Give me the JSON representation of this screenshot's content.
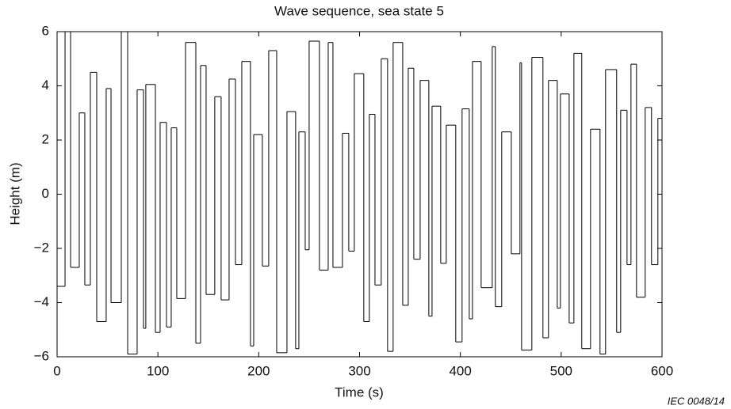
{
  "chart_data": {
    "type": "step",
    "title": "Wave sequence, sea state 5",
    "x_label": "Time   (s)",
    "y_label": "Height   (m)",
    "note": "IEC  0048/14",
    "color": "#000000",
    "xlim": [
      0,
      600
    ],
    "ylim": [
      -6,
      6
    ],
    "xticks": [
      0,
      100,
      200,
      300,
      400,
      500,
      600
    ],
    "yticks": [
      {
        "value": -6,
        "label": "−6"
      },
      {
        "value": -4,
        "label": "−4"
      },
      {
        "value": -2,
        "label": "−2"
      },
      0,
      2,
      4,
      6
    ],
    "x": [
      0,
      7.9,
      13.4,
      22,
      27.5,
      33,
      39.3,
      48.7,
      53.5,
      63.7,
      70,
      79.4,
      85.7,
      88,
      97.5,
      102.2,
      108.5,
      113.2,
      118.7,
      127.4,
      137.6,
      142.3,
      147.8,
      156.4,
      162.7,
      170.6,
      176.9,
      183.2,
      191.8,
      195,
      203.6,
      209.9,
      217.8,
      228,
      236.6,
      239.8,
      246.1,
      250,
      260.2,
      268.9,
      273.6,
      283,
      289.3,
      294.8,
      304.2,
      309.7,
      315.3,
      321.5,
      327.8,
      333.3,
      342.8,
      348.3,
      353.8,
      360.1,
      368.7,
      371.9,
      380.5,
      386,
      395.4,
      401.7,
      408.8,
      412,
      420.6,
      431.6,
      434.7,
      441,
      450.5,
      459.1,
      460.7,
      470.9,
      481.9,
      487.4,
      496.1,
      499.2,
      507.9,
      512.6,
      520.4,
      529.1,
      538.5,
      544,
      555,
      559,
      565.3,
      569.2,
      574.7,
      583.3,
      589.6,
      595.9
    ],
    "values": [
      -3.4,
      6,
      -2.7,
      3.0,
      -3.35,
      4.5,
      -4.7,
      3.9,
      -4.0,
      6,
      -5.9,
      3.85,
      -4.95,
      4.05,
      -5.1,
      2.65,
      -4.9,
      2.45,
      -3.85,
      5.6,
      -5.5,
      4.75,
      -3.7,
      3.6,
      -3.9,
      4.25,
      -2.6,
      4.9,
      -5.6,
      2.2,
      -2.65,
      5.3,
      -5.85,
      3.05,
      -5.7,
      2.3,
      -2.05,
      5.65,
      -2.8,
      5.6,
      -2.7,
      2.25,
      -2.1,
      4.45,
      -4.7,
      2.95,
      -3.35,
      5.0,
      -5.8,
      5.6,
      -4.1,
      4.65,
      -2.4,
      4.2,
      -4.5,
      3.25,
      -2.55,
      2.55,
      -5.45,
      3.15,
      -4.6,
      4.9,
      -3.45,
      5.45,
      -4.15,
      2.3,
      -2.2,
      4.85,
      -5.75,
      5.05,
      -5.3,
      4.2,
      -4.2,
      3.7,
      -4.75,
      5.2,
      -5.7,
      2.4,
      -5.9,
      4.6,
      -5.1,
      3.1,
      -2.6,
      4.8,
      -3.8,
      3.2,
      -2.6,
      2.8
    ]
  }
}
